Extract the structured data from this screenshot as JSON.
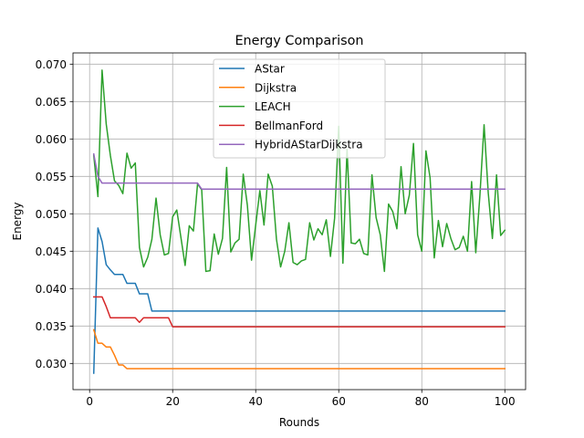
{
  "chart_data": {
    "type": "line",
    "title": "Energy Comparison",
    "xlabel": "Rounds",
    "ylabel": "Energy",
    "xlim": [
      -4,
      105
    ],
    "ylim": [
      0.0265,
      0.0715
    ],
    "x_ticks": [
      0,
      20,
      40,
      60,
      80,
      100
    ],
    "x_tick_labels": [
      "0",
      "20",
      "40",
      "60",
      "80",
      "100"
    ],
    "y_ticks": [
      0.03,
      0.035,
      0.04,
      0.045,
      0.05,
      0.055,
      0.06,
      0.065,
      0.07
    ],
    "y_tick_labels": [
      "0.030",
      "0.035",
      "0.040",
      "0.045",
      "0.050",
      "0.055",
      "0.060",
      "0.065",
      "0.070"
    ],
    "grid": true,
    "legend_position": "upper center",
    "x": [
      1,
      2,
      3,
      4,
      5,
      6,
      7,
      8,
      9,
      10,
      11,
      12,
      13,
      14,
      15,
      16,
      17,
      18,
      19,
      20,
      21,
      22,
      23,
      24,
      25,
      26,
      27,
      28,
      29,
      30,
      31,
      32,
      33,
      34,
      35,
      36,
      37,
      38,
      39,
      40,
      41,
      42,
      43,
      44,
      45,
      46,
      47,
      48,
      49,
      50,
      51,
      52,
      53,
      54,
      55,
      56,
      57,
      58,
      59,
      60,
      61,
      62,
      63,
      64,
      65,
      66,
      67,
      68,
      69,
      70,
      71,
      72,
      73,
      74,
      75,
      76,
      77,
      78,
      79,
      80,
      81,
      82,
      83,
      84,
      85,
      86,
      87,
      88,
      89,
      90,
      91,
      92,
      93,
      94,
      95,
      96,
      97,
      98,
      99,
      100
    ],
    "series": [
      {
        "name": "AStar",
        "color": "#1f77b4",
        "values": [
          0.0287,
          0.0481,
          0.0463,
          0.0432,
          0.0425,
          0.0419,
          0.0419,
          0.0419,
          0.0407,
          0.0407,
          0.0407,
          0.0393,
          0.0393,
          0.0393,
          0.037,
          0.037,
          0.037,
          0.037,
          0.037,
          0.037,
          0.037,
          0.037,
          0.037,
          0.037,
          0.037,
          0.037,
          0.037,
          0.037,
          0.037,
          0.037,
          0.037,
          0.037,
          0.037,
          0.037,
          0.037,
          0.037,
          0.037,
          0.037,
          0.037,
          0.037,
          0.037,
          0.037,
          0.037,
          0.037,
          0.037,
          0.037,
          0.037,
          0.037,
          0.037,
          0.037,
          0.037,
          0.037,
          0.037,
          0.037,
          0.037,
          0.037,
          0.037,
          0.037,
          0.037,
          0.037,
          0.037,
          0.037,
          0.037,
          0.037,
          0.037,
          0.037,
          0.037,
          0.037,
          0.037,
          0.037,
          0.037,
          0.037,
          0.037,
          0.037,
          0.037,
          0.037,
          0.037,
          0.037,
          0.037,
          0.037,
          0.037,
          0.037,
          0.037,
          0.037,
          0.037,
          0.037,
          0.037,
          0.037,
          0.037,
          0.037,
          0.037,
          0.037,
          0.037,
          0.037,
          0.037,
          0.037,
          0.037,
          0.037,
          0.037,
          0.037
        ]
      },
      {
        "name": "Dijkstra",
        "color": "#ff7f0e",
        "values": [
          0.0345,
          0.0327,
          0.0327,
          0.0322,
          0.0322,
          0.0311,
          0.0298,
          0.0298,
          0.0293,
          0.0293,
          0.0293,
          0.0293,
          0.0293,
          0.0293,
          0.0293,
          0.0293,
          0.0293,
          0.0293,
          0.0293,
          0.0293,
          0.0293,
          0.0293,
          0.0293,
          0.0293,
          0.0293,
          0.0293,
          0.0293,
          0.0293,
          0.0293,
          0.0293,
          0.0293,
          0.0293,
          0.0293,
          0.0293,
          0.0293,
          0.0293,
          0.0293,
          0.0293,
          0.0293,
          0.0293,
          0.0293,
          0.0293,
          0.0293,
          0.0293,
          0.0293,
          0.0293,
          0.0293,
          0.0293,
          0.0293,
          0.0293,
          0.0293,
          0.0293,
          0.0293,
          0.0293,
          0.0293,
          0.0293,
          0.0293,
          0.0293,
          0.0293,
          0.0293,
          0.0293,
          0.0293,
          0.0293,
          0.0293,
          0.0293,
          0.0293,
          0.0293,
          0.0293,
          0.0293,
          0.0293,
          0.0293,
          0.0293,
          0.0293,
          0.0293,
          0.0293,
          0.0293,
          0.0293,
          0.0293,
          0.0293,
          0.0293,
          0.0293,
          0.0293,
          0.0293,
          0.0293,
          0.0293,
          0.0293,
          0.0293,
          0.0293,
          0.0293,
          0.0293,
          0.0293,
          0.0293,
          0.0293,
          0.0293,
          0.0293,
          0.0293,
          0.0293,
          0.0293,
          0.0293,
          0.0293
        ]
      },
      {
        "name": "LEACH",
        "color": "#2ca02c",
        "values": [
          0.0578,
          0.0523,
          0.0692,
          0.062,
          0.0578,
          0.0544,
          0.0538,
          0.0527,
          0.0581,
          0.0561,
          0.0568,
          0.0455,
          0.0429,
          0.0442,
          0.0466,
          0.0521,
          0.0472,
          0.0445,
          0.0447,
          0.0496,
          0.0505,
          0.0468,
          0.0431,
          0.0484,
          0.0477,
          0.054,
          0.0532,
          0.0423,
          0.0424,
          0.0473,
          0.0446,
          0.0467,
          0.0562,
          0.0449,
          0.0461,
          0.0466,
          0.0553,
          0.0511,
          0.0438,
          0.0485,
          0.0531,
          0.0485,
          0.0553,
          0.0537,
          0.0466,
          0.0429,
          0.045,
          0.0488,
          0.0435,
          0.0432,
          0.0437,
          0.0439,
          0.0488,
          0.0465,
          0.048,
          0.0472,
          0.0492,
          0.0443,
          0.0494,
          0.0617,
          0.0434,
          0.0586,
          0.0461,
          0.046,
          0.0466,
          0.0447,
          0.0445,
          0.0552,
          0.0495,
          0.0472,
          0.0423,
          0.0513,
          0.0503,
          0.048,
          0.0563,
          0.05,
          0.0525,
          0.0594,
          0.0472,
          0.045,
          0.0584,
          0.0548,
          0.0441,
          0.0491,
          0.0456,
          0.0487,
          0.0467,
          0.0452,
          0.0455,
          0.047,
          0.045,
          0.0543,
          0.0448,
          0.0525,
          0.0619,
          0.0528,
          0.0467,
          0.0552,
          0.0471,
          0.0478
        ]
      },
      {
        "name": "BellmanFord",
        "color": "#d62728",
        "values": [
          0.0389,
          0.0389,
          0.0389,
          0.0376,
          0.0361,
          0.0361,
          0.0361,
          0.0361,
          0.0361,
          0.0361,
          0.0361,
          0.0355,
          0.0361,
          0.0361,
          0.0361,
          0.0361,
          0.0361,
          0.0361,
          0.0361,
          0.0349,
          0.0349,
          0.0349,
          0.0349,
          0.0349,
          0.0349,
          0.0349,
          0.0349,
          0.0349,
          0.0349,
          0.0349,
          0.0349,
          0.0349,
          0.0349,
          0.0349,
          0.0349,
          0.0349,
          0.0349,
          0.0349,
          0.0349,
          0.0349,
          0.0349,
          0.0349,
          0.0349,
          0.0349,
          0.0349,
          0.0349,
          0.0349,
          0.0349,
          0.0349,
          0.0349,
          0.0349,
          0.0349,
          0.0349,
          0.0349,
          0.0349,
          0.0349,
          0.0349,
          0.0349,
          0.0349,
          0.0349,
          0.0349,
          0.0349,
          0.0349,
          0.0349,
          0.0349,
          0.0349,
          0.0349,
          0.0349,
          0.0349,
          0.0349,
          0.0349,
          0.0349,
          0.0349,
          0.0349,
          0.0349,
          0.0349,
          0.0349,
          0.0349,
          0.0349,
          0.0349,
          0.0349,
          0.0349,
          0.0349,
          0.0349,
          0.0349,
          0.0349,
          0.0349,
          0.0349,
          0.0349,
          0.0349,
          0.0349,
          0.0349,
          0.0349,
          0.0349,
          0.0349,
          0.0349,
          0.0349,
          0.0349,
          0.0349,
          0.0349
        ]
      },
      {
        "name": "HybridAStarDijkstra",
        "color": "#9467bd",
        "values": [
          0.058,
          0.055,
          0.0541,
          0.0541,
          0.0541,
          0.0541,
          0.0541,
          0.0541,
          0.0541,
          0.0541,
          0.0541,
          0.0541,
          0.0541,
          0.0541,
          0.0541,
          0.0541,
          0.0541,
          0.0541,
          0.0541,
          0.0541,
          0.0541,
          0.0541,
          0.0541,
          0.0541,
          0.0541,
          0.0541,
          0.0533,
          0.0533,
          0.0533,
          0.0533,
          0.0533,
          0.0533,
          0.0533,
          0.0533,
          0.0533,
          0.0533,
          0.0533,
          0.0533,
          0.0533,
          0.0533,
          0.0533,
          0.0533,
          0.0533,
          0.0533,
          0.0533,
          0.0533,
          0.0533,
          0.0533,
          0.0533,
          0.0533,
          0.0533,
          0.0533,
          0.0533,
          0.0533,
          0.0533,
          0.0533,
          0.0533,
          0.0533,
          0.0533,
          0.0533,
          0.0533,
          0.0533,
          0.0533,
          0.0533,
          0.0533,
          0.0533,
          0.0533,
          0.0533,
          0.0533,
          0.0533,
          0.0533,
          0.0533,
          0.0533,
          0.0533,
          0.0533,
          0.0533,
          0.0533,
          0.0533,
          0.0533,
          0.0533,
          0.0533,
          0.0533,
          0.0533,
          0.0533,
          0.0533,
          0.0533,
          0.0533,
          0.0533,
          0.0533,
          0.0533,
          0.0533,
          0.0533,
          0.0533,
          0.0533,
          0.0533,
          0.0533,
          0.0533,
          0.0533,
          0.0533,
          0.0533
        ]
      }
    ]
  }
}
